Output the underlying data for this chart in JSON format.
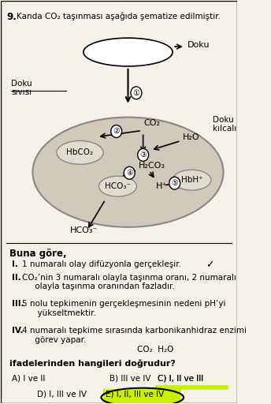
{
  "title_num": "9.",
  "title_text": "Kanda CO₂ taşınması aşağıda şematize edilmiştir.",
  "doku_label": "Doku",
  "doku_sivisi_label": "Doku\nsıvısı",
  "doku_kilcali_label": "Doku\nkılcalı",
  "co2_label": "CO₂",
  "h2o_label": "H₂O",
  "h2co3_label": "H₂CO₃",
  "hco3_inner_label": "HCO₃⁻",
  "hco3_outer_label": "HCO₃⁻",
  "hbco2_label": "HbCO₂",
  "hbhplus_label": "HbH⁺",
  "hplus_label": "H⁺",
  "buna_gore": "Buna göre,",
  "question_text": "ifadelerinden hangileri doğrudur?",
  "handwritten1": "CO₂  H₂O",
  "highlight_color": "#c8f000",
  "bg_color": "#f5f0e8",
  "ellipse_color": "#d0c8b8",
  "sub_ellipse_color": "#e0ddd0"
}
